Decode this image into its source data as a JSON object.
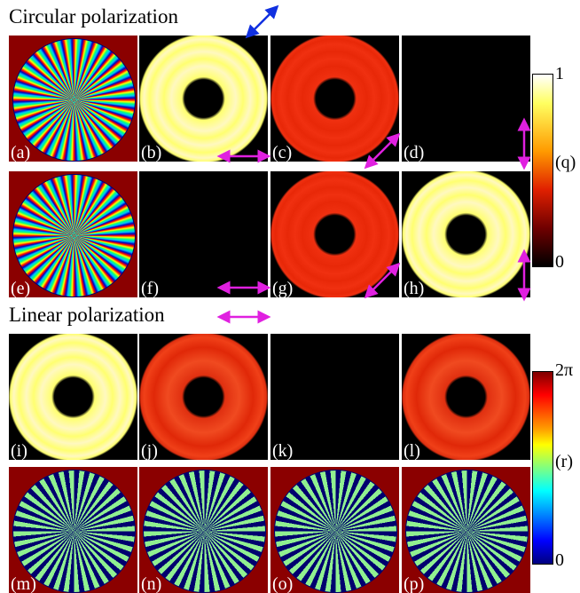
{
  "sections": [
    {
      "title": "Circular polarization"
    },
    {
      "title": "Linear polarization"
    }
  ],
  "panels": [
    "(a)",
    "(b)",
    "(c)",
    "(d)",
    "(e)",
    "(f)",
    "(g)",
    "(h)",
    "(i)",
    "(j)",
    "(k)",
    "(l)",
    "(m)",
    "(n)",
    "(o)",
    "(p)"
  ],
  "colorbars": [
    {
      "max": "1",
      "label": "(q)",
      "min": "0"
    },
    {
      "max": "2π",
      "label": "(r)",
      "min": "0"
    }
  ]
}
